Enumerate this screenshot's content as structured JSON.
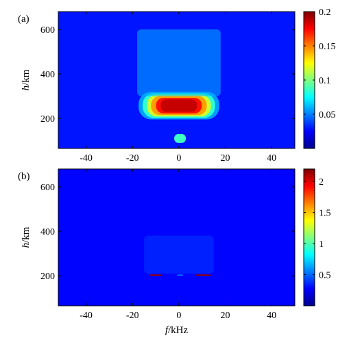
{
  "chart_data": [
    {
      "type": "heatmap",
      "panel_label": "(a)",
      "xlim": [
        -52,
        50
      ],
      "ylim": [
        65,
        680
      ],
      "x_ticks": [
        -40,
        -20,
        0,
        20,
        40
      ],
      "x_tick_labels": [
        "-40",
        "-20",
        "0",
        "20",
        "40"
      ],
      "y_ticks": [
        200,
        400,
        600
      ],
      "y_tick_labels": [
        "200",
        "400",
        "600"
      ],
      "ylabel_italic": "h",
      "ylabel_unit": "/km",
      "colorbar": {
        "range": [
          0,
          0.2
        ],
        "ticks": [
          0.05,
          0.1,
          0.15,
          0.2
        ],
        "tick_labels": [
          "0.05",
          "0.1",
          "0.15",
          "0.2"
        ],
        "colormap": "jet"
      },
      "features": [
        {
          "description_value": "peak",
          "f_kHz": [
            -12,
            12
          ],
          "h_km": [
            215,
            300
          ],
          "value": 0.2,
          "spread": "broad"
        },
        {
          "description_value": "faint band",
          "f_kHz": [
            -18,
            18
          ],
          "h_km": [
            300,
            600
          ],
          "value": 0.04
        },
        {
          "description_value": "small spot",
          "f_kHz": [
            -2,
            3
          ],
          "h_km": [
            90,
            130
          ],
          "value": 0.07
        }
      ],
      "background_value": 0.005
    },
    {
      "type": "heatmap",
      "panel_label": "(b)",
      "xlim": [
        -52,
        50
      ],
      "ylim": [
        65,
        680
      ],
      "x_ticks": [
        -40,
        -20,
        0,
        20,
        40
      ],
      "x_tick_labels": [
        "-40",
        "-20",
        "0",
        "20",
        "40"
      ],
      "y_ticks": [
        200,
        400,
        600
      ],
      "y_tick_labels": [
        "200",
        "400",
        "600"
      ],
      "ylabel_italic": "h",
      "ylabel_unit": "/km",
      "xlabel_italic": "f",
      "xlabel_unit": "/kHz",
      "colorbar": {
        "range": [
          0,
          2.2
        ],
        "ticks": [
          0.5,
          1,
          1.5,
          2
        ],
        "tick_labels": [
          "0.5",
          "1",
          "1.5",
          "2"
        ],
        "colormap": "jet"
      },
      "features": [
        {
          "description_value": "faint band",
          "f_kHz": [
            -15,
            15
          ],
          "h_km": [
            210,
            380
          ],
          "value": 0.15
        },
        {
          "description_value": "hot line left",
          "f_kHz": [
            -13,
            -7
          ],
          "h_km": [
            200,
            206
          ],
          "value": 2.1
        },
        {
          "description_value": "hot line right",
          "f_kHz": [
            7,
            14
          ],
          "h_km": [
            200,
            206
          ],
          "value": 2.1
        },
        {
          "description_value": "weak center",
          "f_kHz": [
            -1,
            2
          ],
          "h_km": [
            200,
            206
          ],
          "value": 0.5
        }
      ],
      "background_value": 0.02
    }
  ]
}
